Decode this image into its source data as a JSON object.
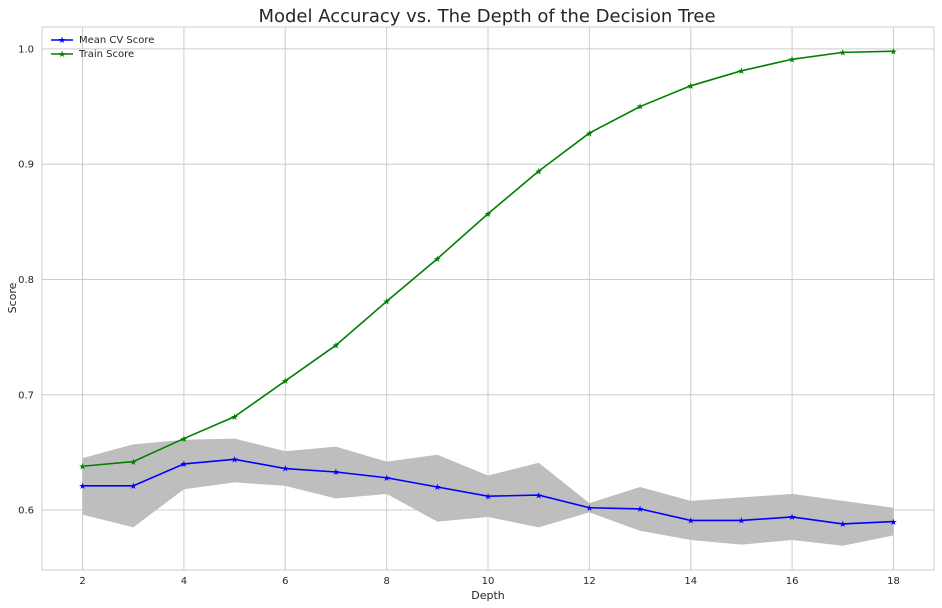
{
  "chart_data": {
    "type": "line",
    "title": "Model Accuracy vs. The Depth of the Decision Tree",
    "xlabel": "Depth",
    "ylabel": "Score",
    "xlim": [
      1.2,
      18.8
    ],
    "ylim": [
      0.548,
      1.019
    ],
    "xticks": [
      2,
      4,
      6,
      8,
      10,
      12,
      14,
      16,
      18
    ],
    "xtick_labels": [
      "2",
      "4",
      "6",
      "8",
      "10",
      "12",
      "14",
      "16",
      "18"
    ],
    "yticks": [
      0.6,
      0.7,
      0.8,
      0.9,
      1.0
    ],
    "ytick_labels": [
      "0.6",
      "0.7",
      "0.8",
      "0.9",
      "1.0"
    ],
    "grid": true,
    "legend_position": "top-left",
    "x": [
      2,
      3,
      4,
      5,
      6,
      7,
      8,
      9,
      10,
      11,
      12,
      13,
      14,
      15,
      16,
      17,
      18
    ],
    "series": [
      {
        "name": "Mean CV Score",
        "color": "#0000ff",
        "marker": "star",
        "values": [
          0.621,
          0.621,
          0.64,
          0.644,
          0.636,
          0.633,
          0.628,
          0.62,
          0.612,
          0.613,
          0.602,
          0.601,
          0.591,
          0.591,
          0.594,
          0.588,
          0.59
        ]
      },
      {
        "name": "Train Score",
        "color": "#008000",
        "marker": "star",
        "values": [
          0.638,
          0.642,
          0.662,
          0.681,
          0.712,
          0.743,
          0.781,
          0.818,
          0.857,
          0.894,
          0.927,
          0.95,
          0.968,
          0.981,
          0.991,
          0.997,
          0.998
        ]
      }
    ],
    "band": {
      "color": "#bebebe",
      "upper": [
        0.645,
        0.657,
        0.661,
        0.662,
        0.651,
        0.655,
        0.642,
        0.648,
        0.63,
        0.641,
        0.606,
        0.62,
        0.608,
        0.611,
        0.614,
        0.608,
        0.602
      ],
      "lower": [
        0.596,
        0.585,
        0.618,
        0.624,
        0.621,
        0.61,
        0.614,
        0.59,
        0.594,
        0.585,
        0.598,
        0.582,
        0.574,
        0.57,
        0.574,
        0.569,
        0.578
      ]
    }
  }
}
